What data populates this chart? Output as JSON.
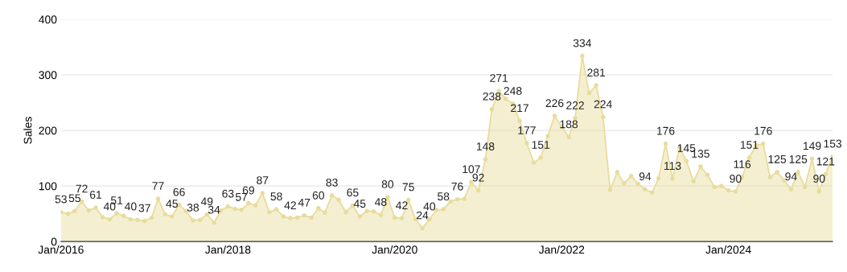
{
  "chart_data": {
    "type": "area",
    "ylabel": "Sales",
    "x": [
      "2016-01",
      "2016-02",
      "2016-03",
      "2016-04",
      "2016-05",
      "2016-06",
      "2016-07",
      "2016-08",
      "2016-09",
      "2016-10",
      "2016-11",
      "2016-12",
      "2017-01",
      "2017-02",
      "2017-03",
      "2017-04",
      "2017-05",
      "2017-06",
      "2017-07",
      "2017-08",
      "2017-09",
      "2017-10",
      "2017-11",
      "2017-12",
      "2018-01",
      "2018-02",
      "2018-03",
      "2018-04",
      "2018-05",
      "2018-06",
      "2018-07",
      "2018-08",
      "2018-09",
      "2018-10",
      "2018-11",
      "2018-12",
      "2019-01",
      "2019-02",
      "2019-03",
      "2019-04",
      "2019-05",
      "2019-06",
      "2019-07",
      "2019-08",
      "2019-09",
      "2019-10",
      "2019-11",
      "2019-12",
      "2020-01",
      "2020-02",
      "2020-03",
      "2020-04",
      "2020-05",
      "2020-06",
      "2020-07",
      "2020-08",
      "2020-09",
      "2020-10",
      "2020-11",
      "2020-12",
      "2021-01",
      "2021-02",
      "2021-03",
      "2021-04",
      "2021-05",
      "2021-06",
      "2021-07",
      "2021-08",
      "2021-09",
      "2021-10",
      "2021-11",
      "2021-12",
      "2022-01",
      "2022-02",
      "2022-03",
      "2022-04",
      "2022-05",
      "2022-06",
      "2022-07",
      "2022-08",
      "2022-09",
      "2022-10",
      "2022-11",
      "2022-12",
      "2023-01",
      "2023-02",
      "2023-03",
      "2023-04",
      "2023-05",
      "2023-06",
      "2023-07",
      "2023-08",
      "2023-09",
      "2023-10",
      "2023-11",
      "2023-12",
      "2024-01",
      "2024-02",
      "2024-03",
      "2024-04",
      "2024-05",
      "2024-06",
      "2024-07",
      "2024-08",
      "2024-09",
      "2024-10",
      "2024-11",
      "2024-12",
      "2025-01",
      "2025-02",
      "2025-03",
      "2025-04"
    ],
    "series": [
      {
        "color": "#e8dc9c",
        "values": [
          53,
          50,
          55,
          72,
          56,
          61,
          44,
          40,
          51,
          46,
          40,
          39,
          37,
          43,
          77,
          49,
          45,
          66,
          55,
          38,
          39,
          49,
          34,
          56,
          63,
          59,
          57,
          69,
          65,
          87,
          53,
          58,
          45,
          42,
          43,
          47,
          43,
          60,
          52,
          83,
          75,
          53,
          65,
          45,
          55,
          54,
          48,
          80,
          43,
          42,
          75,
          40,
          24,
          40,
          57,
          58,
          72,
          76,
          77,
          107,
          92,
          148,
          238,
          271,
          257,
          248,
          217,
          177,
          142,
          151,
          190,
          226,
          207,
          188,
          222,
          334,
          267,
          281,
          224,
          93,
          125,
          105,
          118,
          104,
          94,
          88,
          114,
          176,
          113,
          169,
          145,
          108,
          135,
          120,
          98,
          100,
          92,
          90,
          116,
          151,
          173,
          176,
          116,
          125,
          110,
          94,
          125,
          98,
          149,
          90,
          121,
          153
        ],
        "value_labels": [
          "53",
          null,
          "55",
          "72",
          null,
          "61",
          null,
          "40",
          "51",
          null,
          "40",
          null,
          "37",
          null,
          "77",
          null,
          "45",
          "66",
          null,
          "38",
          null,
          "49",
          "34",
          null,
          "63",
          null,
          "57",
          "69",
          null,
          "87",
          null,
          "58",
          null,
          "42",
          null,
          "47",
          null,
          "60",
          null,
          "83",
          null,
          null,
          "65",
          "45",
          null,
          null,
          "48",
          "80",
          null,
          "42",
          "75",
          null,
          "24",
          "40",
          null,
          "58",
          null,
          "76",
          null,
          "107",
          "92",
          "148",
          "238",
          "271",
          null,
          "248",
          "217",
          "177",
          null,
          "151",
          null,
          "226",
          null,
          "188",
          "222",
          "334",
          null,
          "281",
          "224",
          null,
          null,
          null,
          null,
          null,
          "94",
          null,
          null,
          "176",
          "113",
          null,
          "145",
          null,
          "135",
          null,
          null,
          null,
          null,
          "90",
          "116",
          "151",
          null,
          "176",
          null,
          "125",
          null,
          "94",
          "125",
          null,
          "149",
          "90",
          "121",
          "153"
        ]
      }
    ],
    "xlim": [
      "2016-01",
      "2025-04"
    ],
    "xticks": [
      {
        "value": "2016-01",
        "label": "Jan/2016"
      },
      {
        "value": "2018-01",
        "label": "Jan/2018"
      },
      {
        "value": "2020-01",
        "label": "Jan/2020"
      },
      {
        "value": "2022-01",
        "label": "Jan/2022"
      },
      {
        "value": "2024-01",
        "label": "Jan/2024"
      }
    ],
    "ylim": [
      0,
      400
    ],
    "yticks": [
      0,
      100,
      200,
      300,
      400
    ],
    "grid": "y",
    "marker": "circle",
    "line_style": "solid"
  }
}
